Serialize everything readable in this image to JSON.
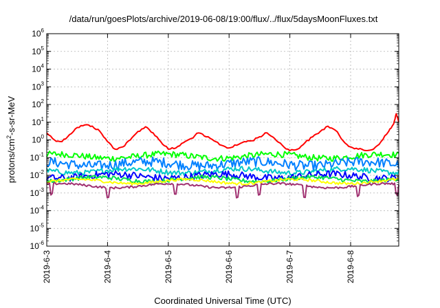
{
  "chart_data": {
    "type": "line",
    "title": "/data/run/goesPlots/archive/2019-06-08/19:00/flux/../flux/5daysMoonFluxes.txt",
    "xlabel": "Coordinated Universal Time (UTC)",
    "ylabel": "protons/cm2-s-sr-MeV",
    "yscale": "log",
    "ylim": [
      1e-06,
      1000000.0
    ],
    "xlim": [
      "2019-06-03 00:00",
      "2019-06-08 19:00"
    ],
    "grid": true,
    "legend": "none",
    "x_ticks": [
      "2019-6-3",
      "2019-6-4",
      "2019-6-5",
      "2019-6-6",
      "2019-6-7",
      "2019-6-8"
    ],
    "y_ticks": [
      {
        "base": "10",
        "exp": "-6"
      },
      {
        "base": "10",
        "exp": "-5"
      },
      {
        "base": "10",
        "exp": "-4"
      },
      {
        "base": "10",
        "exp": "-3"
      },
      {
        "base": "10",
        "exp": "-2"
      },
      {
        "base": "10",
        "exp": "-1"
      },
      {
        "base": "10",
        "exp": "0"
      },
      {
        "base": "10",
        "exp": "1"
      },
      {
        "base": "10",
        "exp": "2"
      },
      {
        "base": "10",
        "exp": "3"
      },
      {
        "base": "10",
        "exp": "4"
      },
      {
        "base": "10",
        "exp": "5"
      },
      {
        "base": "10",
        "exp": "6"
      }
    ],
    "series": [
      {
        "color": "#ff0000",
        "points": [
          [
            "2019-06-03 00:00",
            2.5
          ],
          [
            "2019-06-03 03:00",
            1.0
          ],
          [
            "2019-06-03 06:00",
            0.8
          ],
          [
            "2019-06-03 09:00",
            2.0
          ],
          [
            "2019-06-03 12:00",
            5.0
          ],
          [
            "2019-06-03 15:00",
            7.0
          ],
          [
            "2019-06-03 18:00",
            6.0
          ],
          [
            "2019-06-03 21:00",
            3.0
          ],
          [
            "2019-06-04 00:00",
            0.8
          ],
          [
            "2019-06-04 03:00",
            0.3
          ],
          [
            "2019-06-04 06:00",
            0.4
          ],
          [
            "2019-06-04 09:00",
            1.0
          ],
          [
            "2019-06-04 12:00",
            3.0
          ],
          [
            "2019-06-04 15:00",
            5.5
          ],
          [
            "2019-06-04 18:00",
            2.5
          ],
          [
            "2019-06-04 21:00",
            0.8
          ],
          [
            "2019-06-05 00:00",
            0.3
          ],
          [
            "2019-06-05 03:00",
            0.35
          ],
          [
            "2019-06-05 06:00",
            0.7
          ],
          [
            "2019-06-05 09:00",
            1.2
          ],
          [
            "2019-06-05 12:00",
            2.5
          ],
          [
            "2019-06-05 15:00",
            1.5
          ],
          [
            "2019-06-05 18:00",
            0.9
          ],
          [
            "2019-06-05 21:00",
            0.5
          ],
          [
            "2019-06-06 00:00",
            0.35
          ],
          [
            "2019-06-06 03:00",
            0.5
          ],
          [
            "2019-06-06 06:00",
            0.8
          ],
          [
            "2019-06-06 09:00",
            0.9
          ],
          [
            "2019-06-06 12:00",
            1.5
          ],
          [
            "2019-06-06 15:00",
            2.5
          ],
          [
            "2019-06-06 18:00",
            1.2
          ],
          [
            "2019-06-06 21:00",
            0.5
          ],
          [
            "2019-06-07 00:00",
            0.25
          ],
          [
            "2019-06-07 03:00",
            0.3
          ],
          [
            "2019-06-07 06:00",
            0.7
          ],
          [
            "2019-06-07 09:00",
            1.5
          ],
          [
            "2019-06-07 12:00",
            3.0
          ],
          [
            "2019-06-07 15:00",
            6.0
          ],
          [
            "2019-06-07 18:00",
            3.5
          ],
          [
            "2019-06-07 21:00",
            0.9
          ],
          [
            "2019-06-08 00:00",
            0.4
          ],
          [
            "2019-06-08 03:00",
            0.3
          ],
          [
            "2019-06-08 06:00",
            0.25
          ],
          [
            "2019-06-08 09:00",
            0.3
          ],
          [
            "2019-06-08 12:00",
            0.8
          ],
          [
            "2019-06-08 15:00",
            3.0
          ],
          [
            "2019-06-08 17:00",
            8.0
          ],
          [
            "2019-06-08 18:00",
            30.0
          ],
          [
            "2019-06-08 19:00",
            10.0
          ]
        ]
      },
      {
        "color": "#00ff00",
        "base": 0.12,
        "amp": 1.5,
        "dips": []
      },
      {
        "color": "#0080ff",
        "base": 0.045,
        "amp": 1.9,
        "dips": []
      },
      {
        "color": "#00c8c8",
        "base": 0.018,
        "amp": 1.4,
        "dips": []
      },
      {
        "color": "#0000ff",
        "base": 0.009,
        "amp": 1.6,
        "dips": []
      },
      {
        "color": "#00e050",
        "base": 0.006,
        "amp": 1.3,
        "dips": []
      },
      {
        "color": "#ffff00",
        "base": 0.0045,
        "amp": 1.2,
        "dips": []
      },
      {
        "color": "#a03070",
        "base": 0.0026,
        "amp": 1.15,
        "dips": [
          "2019-06-03 02:00",
          "2019-06-04 00:00",
          "2019-06-05 03:00",
          "2019-06-06 03:00",
          "2019-06-06 12:00",
          "2019-06-07 06:00",
          "2019-06-08 03:00",
          "2019-06-08 18:00"
        ]
      }
    ]
  }
}
